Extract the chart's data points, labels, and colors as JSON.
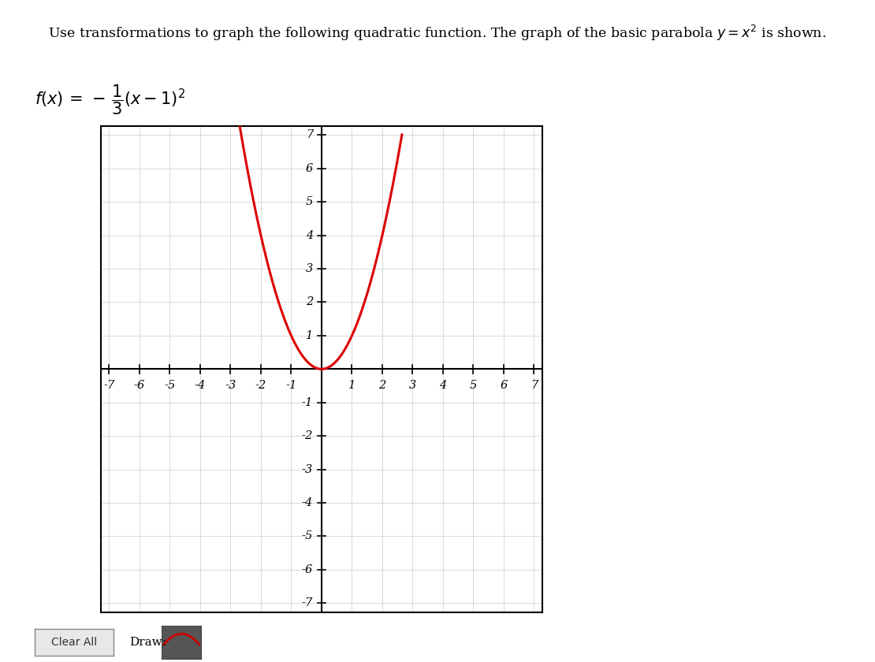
{
  "title": "Use transformations to graph the following quadratic function. The graph of the basic parabola $y = x^2$ is shown.",
  "xlim": [
    -7,
    7
  ],
  "ylim": [
    -7,
    7
  ],
  "curve_color": "#dd0000",
  "curve_linewidth": 2.2,
  "grid_color": "#cccccc",
  "grid_linewidth": 0.5,
  "background_color": "#ffffff",
  "axis_color": "#000000",
  "text_color": "#000000",
  "figure_width": 11.1,
  "figure_height": 8.4,
  "curve_x_start": -4.65,
  "curve_x_end": 2.65,
  "tick_labels_x": [
    -7,
    -6,
    -5,
    -4,
    -3,
    -2,
    -1,
    1,
    2,
    3,
    4,
    5,
    6,
    7
  ],
  "tick_labels_y": [
    -7,
    -6,
    -5,
    -4,
    -3,
    -2,
    -1,
    1,
    2,
    3,
    4,
    5,
    6,
    7
  ]
}
